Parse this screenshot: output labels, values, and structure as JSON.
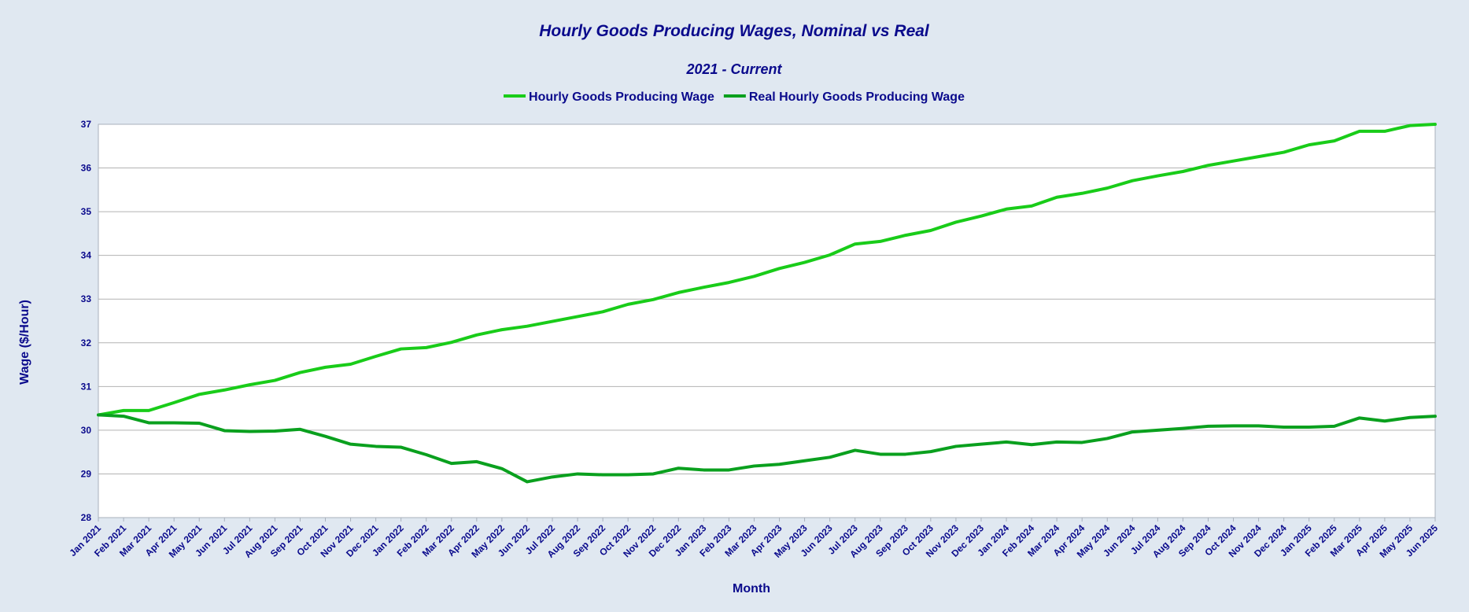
{
  "chart_data": {
    "type": "line",
    "title": "Hourly Goods Producing Wages, Nominal vs Real",
    "subtitle": "2021 - Current",
    "xlabel": "Month",
    "ylabel": "Wage ($/Hour)",
    "ylim": [
      28,
      37
    ],
    "yticks": [
      28,
      29,
      30,
      31,
      32,
      33,
      34,
      35,
      36,
      37
    ],
    "grid": true,
    "legend_position": "top-center",
    "categories": [
      "Jan 2021",
      "Feb 2021",
      "Mar 2021",
      "Apr 2021",
      "May 2021",
      "Jun 2021",
      "Jul 2021",
      "Aug 2021",
      "Sep 2021",
      "Oct 2021",
      "Nov 2021",
      "Dec 2021",
      "Jan 2022",
      "Feb 2022",
      "Mar 2022",
      "Apr 2022",
      "May 2022",
      "Jun 2022",
      "Jul 2022",
      "Aug 2022",
      "Sep 2022",
      "Oct 2022",
      "Nov 2022",
      "Dec 2022",
      "Jan 2023",
      "Feb 2023",
      "Mar 2023",
      "Apr 2023",
      "May 2023",
      "Jun 2023",
      "Jul 2023",
      "Aug 2023",
      "Sep 2023",
      "Oct 2023",
      "Nov 2023",
      "Dec 2023",
      "Jan 2024",
      "Feb 2024",
      "Mar 2024",
      "Apr 2024",
      "May 2024",
      "Jun 2024",
      "Jul 2024",
      "Aug 2024",
      "Sep 2024",
      "Oct 2024",
      "Nov 2024",
      "Dec 2024",
      "Jan 2025",
      "Feb 2025",
      "Mar 2025",
      "Apr 2025",
      "May 2025",
      "Jun 2025"
    ],
    "series": [
      {
        "name": "Hourly Goods Producing Wage",
        "color": "#19cc19",
        "values": [
          30.35,
          30.45,
          30.45,
          30.63,
          30.82,
          30.92,
          31.04,
          31.14,
          31.32,
          31.44,
          31.51,
          31.69,
          31.86,
          31.89,
          32.01,
          32.18,
          32.3,
          32.38,
          32.49,
          32.6,
          32.71,
          32.88,
          32.99,
          33.15,
          33.27,
          33.38,
          33.52,
          33.7,
          33.84,
          34.01,
          34.26,
          34.32,
          34.46,
          34.57,
          34.76,
          34.9,
          35.06,
          35.13,
          35.33,
          35.42,
          35.54,
          35.71,
          35.82,
          35.92,
          36.06,
          36.16,
          36.26,
          36.36,
          36.53,
          36.62,
          36.84,
          36.84,
          36.97,
          37.0
        ]
      },
      {
        "name": "Real Hourly Goods Producing Wage",
        "color": "#0aa01e",
        "values": [
          30.35,
          30.32,
          30.17,
          30.17,
          30.16,
          29.99,
          29.97,
          29.98,
          30.02,
          29.86,
          29.68,
          29.63,
          29.61,
          29.44,
          29.24,
          29.28,
          29.12,
          28.82,
          28.93,
          29.0,
          28.98,
          28.98,
          29.0,
          29.13,
          29.09,
          29.09,
          29.18,
          29.22,
          29.3,
          29.38,
          29.54,
          29.45,
          29.45,
          29.51,
          29.63,
          29.68,
          29.73,
          29.67,
          29.73,
          29.72,
          29.81,
          29.96,
          30.0,
          30.04,
          30.09,
          30.1,
          30.1,
          30.07,
          30.07,
          30.09,
          30.28,
          30.21,
          30.29,
          30.32
        ]
      }
    ]
  }
}
